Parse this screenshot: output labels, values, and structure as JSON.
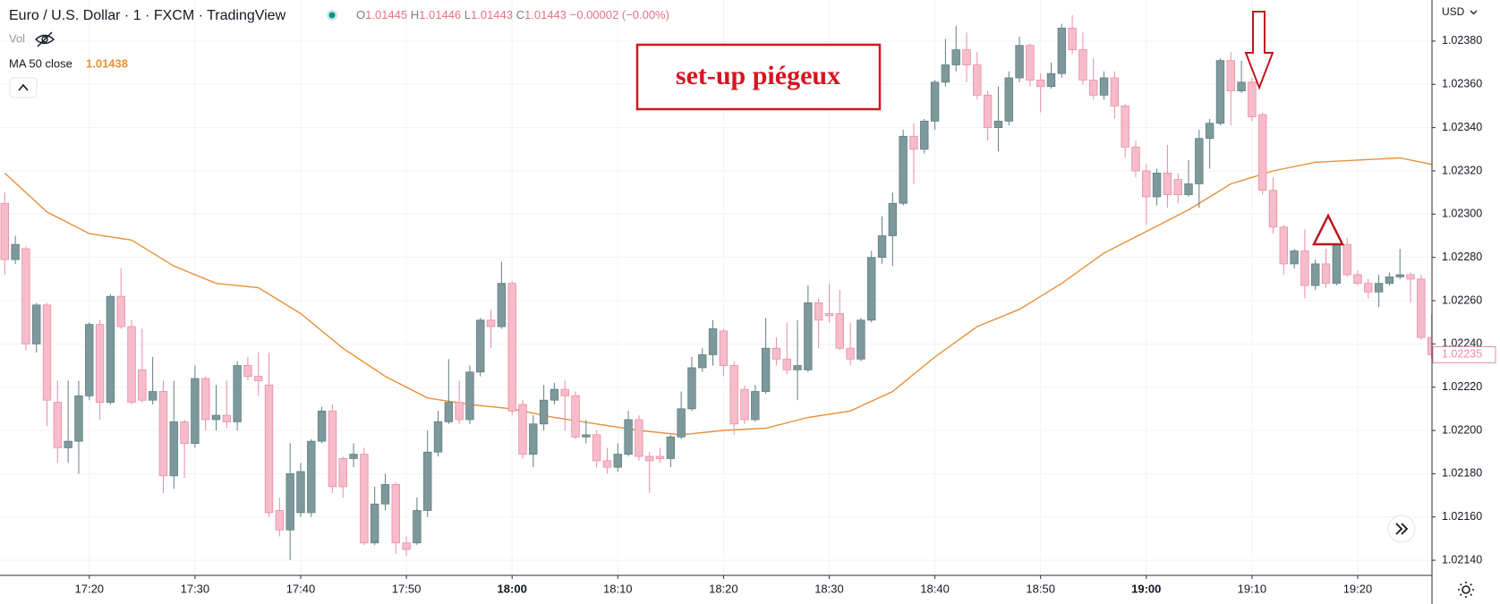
{
  "chart_data": {
    "type": "candlestick",
    "title": "Euro / U.S. Dollar · 1 · FXCM · TradingView",
    "ohlc_legend": [
      {
        "label": "O",
        "value": "1.01445"
      },
      {
        "label": "H",
        "value": "1.01446"
      },
      {
        "label": "L",
        "value": "1.01443"
      },
      {
        "label": "C",
        "value": "1.01443"
      }
    ],
    "change": "−0.00002 (−0.00%)",
    "volume_label": "Vol",
    "currency": "USD",
    "annotation": "set-up piégeux",
    "last_label": "1.02235",
    "up_color": "#7e999c",
    "up_border": "#5f7f83",
    "down_color": "#f7bccb",
    "down_border": "#e98da3",
    "grid": true,
    "ylim": [
      1.02133,
      1.02399
    ],
    "yticks": [
      {
        "value": 1.0214,
        "label": "1.02140"
      },
      {
        "value": 1.0216,
        "label": "1.02160"
      },
      {
        "value": 1.0218,
        "label": "1.02180"
      },
      {
        "value": 1.022,
        "label": "1.02200"
      },
      {
        "value": 1.0222,
        "label": "1.02220"
      },
      {
        "value": 1.0224,
        "label": "1.02240"
      },
      {
        "value": 1.0226,
        "label": "1.02260"
      },
      {
        "value": 1.0228,
        "label": "1.02280"
      },
      {
        "value": 1.023,
        "label": "1.02300"
      },
      {
        "value": 1.0232,
        "label": "1.02320"
      },
      {
        "value": 1.0234,
        "label": "1.02340"
      },
      {
        "value": 1.0236,
        "label": "1.02360"
      },
      {
        "value": 1.0238,
        "label": "1.02380"
      }
    ],
    "xticks": [
      "17:20",
      "17:30",
      "17:40",
      "17:50",
      "18:00",
      "18:10",
      "18:20",
      "18:30",
      "18:40",
      "18:50",
      "19:00",
      "19:10",
      "19:20"
    ],
    "x": [
      "17:12",
      "17:13",
      "17:14",
      "17:15",
      "17:16",
      "17:17",
      "17:18",
      "17:19",
      "17:20",
      "17:21",
      "17:22",
      "17:23",
      "17:24",
      "17:25",
      "17:26",
      "17:27",
      "17:28",
      "17:29",
      "17:30",
      "17:31",
      "17:32",
      "17:33",
      "17:34",
      "17:35",
      "17:36",
      "17:37",
      "17:38",
      "17:39",
      "17:40",
      "17:41",
      "17:42",
      "17:43",
      "17:44",
      "17:45",
      "17:46",
      "17:47",
      "17:48",
      "17:49",
      "17:50",
      "17:51",
      "17:52",
      "17:53",
      "17:54",
      "17:55",
      "17:56",
      "17:57",
      "17:58",
      "17:59",
      "18:00",
      "18:01",
      "18:02",
      "18:03",
      "18:04",
      "18:05",
      "18:06",
      "18:07",
      "18:08",
      "18:09",
      "18:10",
      "18:11",
      "18:12",
      "18:13",
      "18:14",
      "18:15",
      "18:16",
      "18:17",
      "18:18",
      "18:19",
      "18:20",
      "18:21",
      "18:22",
      "18:23",
      "18:24",
      "18:25",
      "18:26",
      "18:27",
      "18:28",
      "18:29",
      "18:30",
      "18:31",
      "18:32",
      "18:33",
      "18:34",
      "18:35",
      "18:36",
      "18:37",
      "18:38",
      "18:39",
      "18:40",
      "18:41",
      "18:42",
      "18:43",
      "18:44",
      "18:45",
      "18:46",
      "18:47",
      "18:48",
      "18:49",
      "18:50",
      "18:51",
      "18:52",
      "18:53",
      "18:54",
      "18:55",
      "18:56",
      "18:57",
      "18:58",
      "18:59",
      "19:00",
      "19:01",
      "19:02",
      "19:03",
      "19:04",
      "19:05",
      "19:06",
      "19:07",
      "19:08",
      "19:09",
      "19:10",
      "19:11",
      "19:12",
      "19:13",
      "19:14",
      "19:15",
      "19:16",
      "19:17",
      "19:18",
      "19:19",
      "19:20",
      "19:21",
      "19:22",
      "19:23",
      "19:24",
      "19:25",
      "19:26",
      "19:27"
    ],
    "open": [
      1.02305,
      1.02279,
      1.02284,
      1.0224,
      1.02258,
      1.02213,
      1.02192,
      1.02195,
      1.02216,
      1.02249,
      1.02213,
      1.02262,
      1.02248,
      1.02228,
      1.02214,
      1.02218,
      1.02179,
      1.02204,
      1.02194,
      1.02224,
      1.02205,
      1.02207,
      1.02204,
      1.0223,
      1.02225,
      1.02221,
      1.02163,
      1.02154,
      1.02162,
      1.02162,
      1.02195,
      1.02209,
      1.02187,
      1.02187,
      1.02189,
      1.02148,
      1.02166,
      1.02175,
      1.02148,
      1.02148,
      1.02163,
      1.0219,
      1.02204,
      1.02213,
      1.02205,
      1.02227,
      1.02251,
      1.02248,
      1.02268,
      1.02212,
      1.02189,
      1.02203,
      1.02214,
      1.02219,
      1.02216,
      1.02197,
      1.02198,
      1.02186,
      1.02183,
      1.02189,
      1.02205,
      1.02188,
      1.02188,
      1.02187,
      1.02197,
      1.0221,
      1.02229,
      1.02235,
      1.02246,
      1.0223,
      1.02219,
      1.02205,
      1.02218,
      1.02238,
      1.02233,
      1.02228,
      1.02228,
      1.02259,
      1.02254,
      1.02254,
      1.02238,
      1.02233,
      1.02251,
      1.0228,
      1.0229,
      1.02305,
      1.02336,
      1.0233,
      1.02343,
      1.02361,
      1.02369,
      1.02376,
      1.02369,
      1.02355,
      1.0234,
      1.02343,
      1.02363,
      1.02378,
      1.02362,
      1.02359,
      1.02365,
      1.02386,
      1.02376,
      1.02362,
      1.02355,
      1.02363,
      1.0235,
      1.02331,
      1.0232,
      1.02308,
      1.02319,
      1.02316,
      1.02309,
      1.02314,
      1.02335,
      1.02342,
      1.02371,
      1.02357,
      1.02361,
      1.02346,
      1.02311,
      1.02294,
      1.02277,
      1.02283,
      1.02267,
      1.02277,
      1.02268,
      1.02286,
      1.02272,
      1.02268,
      1.02264,
      1.02268,
      1.02271,
      1.02272,
      1.0227,
      1.02243
    ],
    "high": [
      1.0231,
      1.0229,
      1.02285,
      1.02259,
      1.02259,
      1.02223,
      1.02223,
      1.02223,
      1.0225,
      1.02251,
      1.02263,
      1.02275,
      1.02251,
      1.02247,
      1.02234,
      1.02223,
      1.02223,
      1.02205,
      1.0223,
      1.02225,
      1.02221,
      1.02223,
      1.02232,
      1.02234,
      1.02236,
      1.02236,
      1.02169,
      1.02194,
      1.02185,
      1.02196,
      1.02211,
      1.02212,
      1.02188,
      1.02194,
      1.02192,
      1.02174,
      1.0218,
      1.02176,
      1.02151,
      1.02169,
      1.022,
      1.02209,
      1.02233,
      1.02223,
      1.0223,
      1.02252,
      1.02256,
      1.02278,
      1.02269,
      1.02214,
      1.02207,
      1.02221,
      1.02222,
      1.02223,
      1.02218,
      1.02205,
      1.022,
      1.02192,
      1.02194,
      1.02209,
      1.02207,
      1.0219,
      1.02192,
      1.02198,
      1.02218,
      1.02234,
      1.02238,
      1.02251,
      1.02247,
      1.02232,
      1.02221,
      1.02221,
      1.02252,
      1.02243,
      1.0225,
      1.02251,
      1.02267,
      1.02261,
      1.02268,
      1.02265,
      1.0225,
      1.02252,
      1.02283,
      1.02299,
      1.0231,
      1.02339,
      1.02342,
      1.02344,
      1.02362,
      1.02381,
      1.02387,
      1.02384,
      1.02375,
      1.02357,
      1.02359,
      1.02366,
      1.02382,
      1.02379,
      1.02365,
      1.0237,
      1.02388,
      1.02392,
      1.02384,
      1.02372,
      1.02366,
      1.02366,
      1.02351,
      1.02334,
      1.02323,
      1.02321,
      1.02332,
      1.02319,
      1.02325,
      1.02339,
      1.02344,
      1.02372,
      1.02375,
      1.02371,
      1.02363,
      1.02347,
      1.02317,
      1.02295,
      1.02284,
      1.02293,
      1.02279,
      1.02284,
      1.02288,
      1.02289,
      1.02274,
      1.0227,
      1.02272,
      1.02273,
      1.02284,
      1.02273,
      1.02272,
      1.02254
    ],
    "low": [
      1.02272,
      1.02277,
      1.02237,
      1.02236,
      1.02202,
      1.02185,
      1.02185,
      1.0218,
      1.02214,
      1.02205,
      1.02212,
      1.02247,
      1.02212,
      1.02213,
      1.02212,
      1.02171,
      1.02173,
      1.02178,
      1.02192,
      1.022,
      1.022,
      1.02201,
      1.022,
      1.02223,
      1.02216,
      1.0216,
      1.02151,
      1.0214,
      1.0216,
      1.0216,
      1.02194,
      1.02171,
      1.02169,
      1.02183,
      1.02147,
      1.02147,
      1.02163,
      1.02143,
      1.02142,
      1.02147,
      1.0216,
      1.02188,
      1.02203,
      1.02203,
      1.02203,
      1.02225,
      1.02238,
      1.02247,
      1.02207,
      1.02187,
      1.02183,
      1.022,
      1.02212,
      1.022,
      1.02196,
      1.02194,
      1.02183,
      1.0218,
      1.02181,
      1.02188,
      1.02186,
      1.02171,
      1.02185,
      1.02183,
      1.02196,
      1.02209,
      1.02227,
      1.0223,
      1.02225,
      1.02198,
      1.02203,
      1.02204,
      1.02217,
      1.0223,
      1.02226,
      1.02214,
      1.02227,
      1.02238,
      1.0225,
      1.02237,
      1.0223,
      1.02232,
      1.0225,
      1.02277,
      1.02276,
      1.02304,
      1.02314,
      1.02328,
      1.02339,
      1.02359,
      1.02366,
      1.02361,
      1.02353,
      1.02334,
      1.02329,
      1.02341,
      1.02361,
      1.02359,
      1.02347,
      1.02358,
      1.02363,
      1.02374,
      1.0236,
      1.02353,
      1.02353,
      1.02344,
      1.02326,
      1.02317,
      1.02295,
      1.02304,
      1.02303,
      1.02305,
      1.02308,
      1.02303,
      1.02321,
      1.02341,
      1.02341,
      1.02356,
      1.02343,
      1.02309,
      1.02291,
      1.02272,
      1.02275,
      1.02261,
      1.02265,
      1.02266,
      1.02267,
      1.02271,
      1.02267,
      1.02261,
      1.02257,
      1.02267,
      1.0227,
      1.02259,
      1.02242,
      1.02233
    ],
    "close": [
      1.02279,
      1.02286,
      1.0224,
      1.02258,
      1.02214,
      1.02192,
      1.02195,
      1.02216,
      1.02249,
      1.02213,
      1.02262,
      1.02248,
      1.02213,
      1.02214,
      1.02218,
      1.02179,
      1.02204,
      1.02194,
      1.02224,
      1.02205,
      1.02207,
      1.02204,
      1.0223,
      1.02225,
      1.02223,
      1.02162,
      1.02154,
      1.0218,
      1.02181,
      1.02195,
      1.02209,
      1.02174,
      1.02174,
      1.02189,
      1.02148,
      1.02166,
      1.02175,
      1.02148,
      1.02145,
      1.02163,
      1.0219,
      1.02204,
      1.02213,
      1.02205,
      1.02227,
      1.02251,
      1.02248,
      1.02268,
      1.02209,
      1.02189,
      1.02203,
      1.02214,
      1.02219,
      1.02216,
      1.02197,
      1.02198,
      1.02186,
      1.02183,
      1.02189,
      1.02205,
      1.02188,
      1.02186,
      1.02187,
      1.02197,
      1.0221,
      1.02229,
      1.02235,
      1.02247,
      1.0223,
      1.02203,
      1.02205,
      1.02218,
      1.02238,
      1.02233,
      1.02228,
      1.0223,
      1.02259,
      1.02251,
      1.02253,
      1.02238,
      1.02233,
      1.02251,
      1.0228,
      1.0229,
      1.02305,
      1.02336,
      1.0233,
      1.02343,
      1.02361,
      1.02369,
      1.02376,
      1.02369,
      1.02355,
      1.0234,
      1.02343,
      1.02363,
      1.02378,
      1.02362,
      1.02359,
      1.02365,
      1.02386,
      1.02376,
      1.02362,
      1.02355,
      1.02363,
      1.0235,
      1.02331,
      1.0232,
      1.02308,
      1.02319,
      1.02309,
      1.02309,
      1.02314,
      1.02335,
      1.02342,
      1.02371,
      1.02357,
      1.02361,
      1.02345,
      1.02311,
      1.02294,
      1.02277,
      1.02283,
      1.02267,
      1.02277,
      1.02268,
      1.02286,
      1.02272,
      1.02268,
      1.02264,
      1.02268,
      1.02271,
      1.02272,
      1.0227,
      1.02243,
      1.02235
    ],
    "ma": {
      "name": "MA 50 close",
      "legend_value": "1.01438",
      "color": "#e8903a",
      "x": [
        "17:12",
        "17:16",
        "17:20",
        "17:24",
        "17:28",
        "17:32",
        "17:36",
        "17:40",
        "17:44",
        "17:48",
        "17:52",
        "17:56",
        "18:00",
        "18:04",
        "18:08",
        "18:12",
        "18:16",
        "18:20",
        "18:24",
        "18:28",
        "18:32",
        "18:36",
        "18:40",
        "18:44",
        "18:48",
        "18:52",
        "18:56",
        "19:00",
        "19:04",
        "19:08",
        "19:12",
        "19:16",
        "19:20",
        "19:24",
        "19:27"
      ],
      "values": [
        1.02319,
        1.02301,
        1.02291,
        1.02288,
        1.02276,
        1.02268,
        1.02266,
        1.02254,
        1.02238,
        1.02225,
        1.02215,
        1.02212,
        1.0221,
        1.02206,
        1.02203,
        1.022,
        1.02198,
        1.022,
        1.02201,
        1.02206,
        1.02209,
        1.02218,
        1.02234,
        1.02248,
        1.02256,
        1.02268,
        1.02282,
        1.02292,
        1.02302,
        1.02314,
        1.0232,
        1.02324,
        1.02325,
        1.02326,
        1.02323
      ]
    }
  }
}
